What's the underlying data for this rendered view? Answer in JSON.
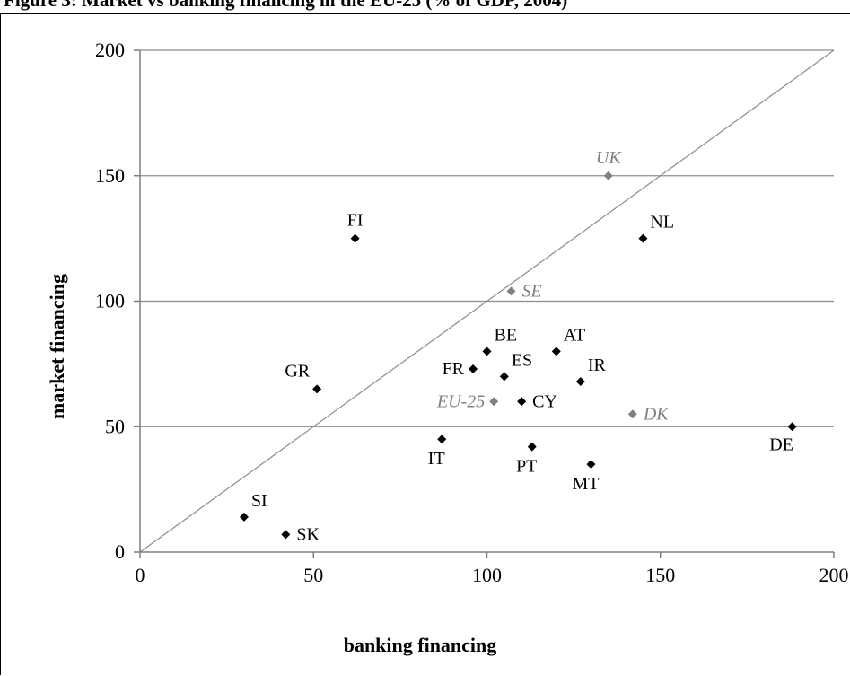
{
  "caption": "Figure 3: Market vs banking financing in the EU-25 (% of GDP, 2004)",
  "chart_data": {
    "type": "scatter",
    "xlabel": "banking financing",
    "ylabel": "market financing",
    "xlim": [
      0,
      200
    ],
    "ylim": [
      0,
      200
    ],
    "x_ticks": [
      "0",
      "50",
      "100",
      "150",
      "200"
    ],
    "y_ticks": [
      "0",
      "50",
      "100",
      "150",
      "200"
    ],
    "grid": "horizontal",
    "reference_line": "diagonal y = x",
    "colors": {
      "default": "#000000",
      "highlight": "#808080"
    },
    "points": [
      {
        "label": "SI",
        "x": 30,
        "y": 14,
        "highlight": false,
        "anchor": "above-right"
      },
      {
        "label": "SK",
        "x": 42,
        "y": 7,
        "highlight": false,
        "anchor": "right"
      },
      {
        "label": "GR",
        "x": 51,
        "y": 65,
        "highlight": false,
        "anchor": "above-left"
      },
      {
        "label": "FI",
        "x": 62,
        "y": 125,
        "highlight": false,
        "anchor": "above"
      },
      {
        "label": "IT",
        "x": 87,
        "y": 45,
        "highlight": false,
        "anchor": "below"
      },
      {
        "label": "FR",
        "x": 96,
        "y": 73,
        "highlight": false,
        "anchor": "left"
      },
      {
        "label": "BE",
        "x": 100,
        "y": 80,
        "highlight": false,
        "anchor": "above-right"
      },
      {
        "label": "EU-25",
        "x": 102,
        "y": 60,
        "highlight": true,
        "anchor": "left"
      },
      {
        "label": "ES",
        "x": 105,
        "y": 70,
        "highlight": false,
        "anchor": "above-right"
      },
      {
        "label": "SE",
        "x": 107,
        "y": 104,
        "highlight": true,
        "anchor": "right"
      },
      {
        "label": "CY",
        "x": 110,
        "y": 60,
        "highlight": false,
        "anchor": "right"
      },
      {
        "label": "PT",
        "x": 113,
        "y": 42,
        "highlight": false,
        "anchor": "below"
      },
      {
        "label": "AT",
        "x": 120,
        "y": 80,
        "highlight": false,
        "anchor": "above-right"
      },
      {
        "label": "IR",
        "x": 127,
        "y": 68,
        "highlight": false,
        "anchor": "above-right"
      },
      {
        "label": "MT",
        "x": 130,
        "y": 35,
        "highlight": false,
        "anchor": "below"
      },
      {
        "label": "UK",
        "x": 135,
        "y": 150,
        "highlight": true,
        "anchor": "above"
      },
      {
        "label": "DK",
        "x": 142,
        "y": 55,
        "highlight": true,
        "anchor": "right"
      },
      {
        "label": "NL",
        "x": 145,
        "y": 125,
        "highlight": false,
        "anchor": "above-right"
      },
      {
        "label": "DE",
        "x": 188,
        "y": 50,
        "highlight": false,
        "anchor": "below-left"
      }
    ]
  }
}
